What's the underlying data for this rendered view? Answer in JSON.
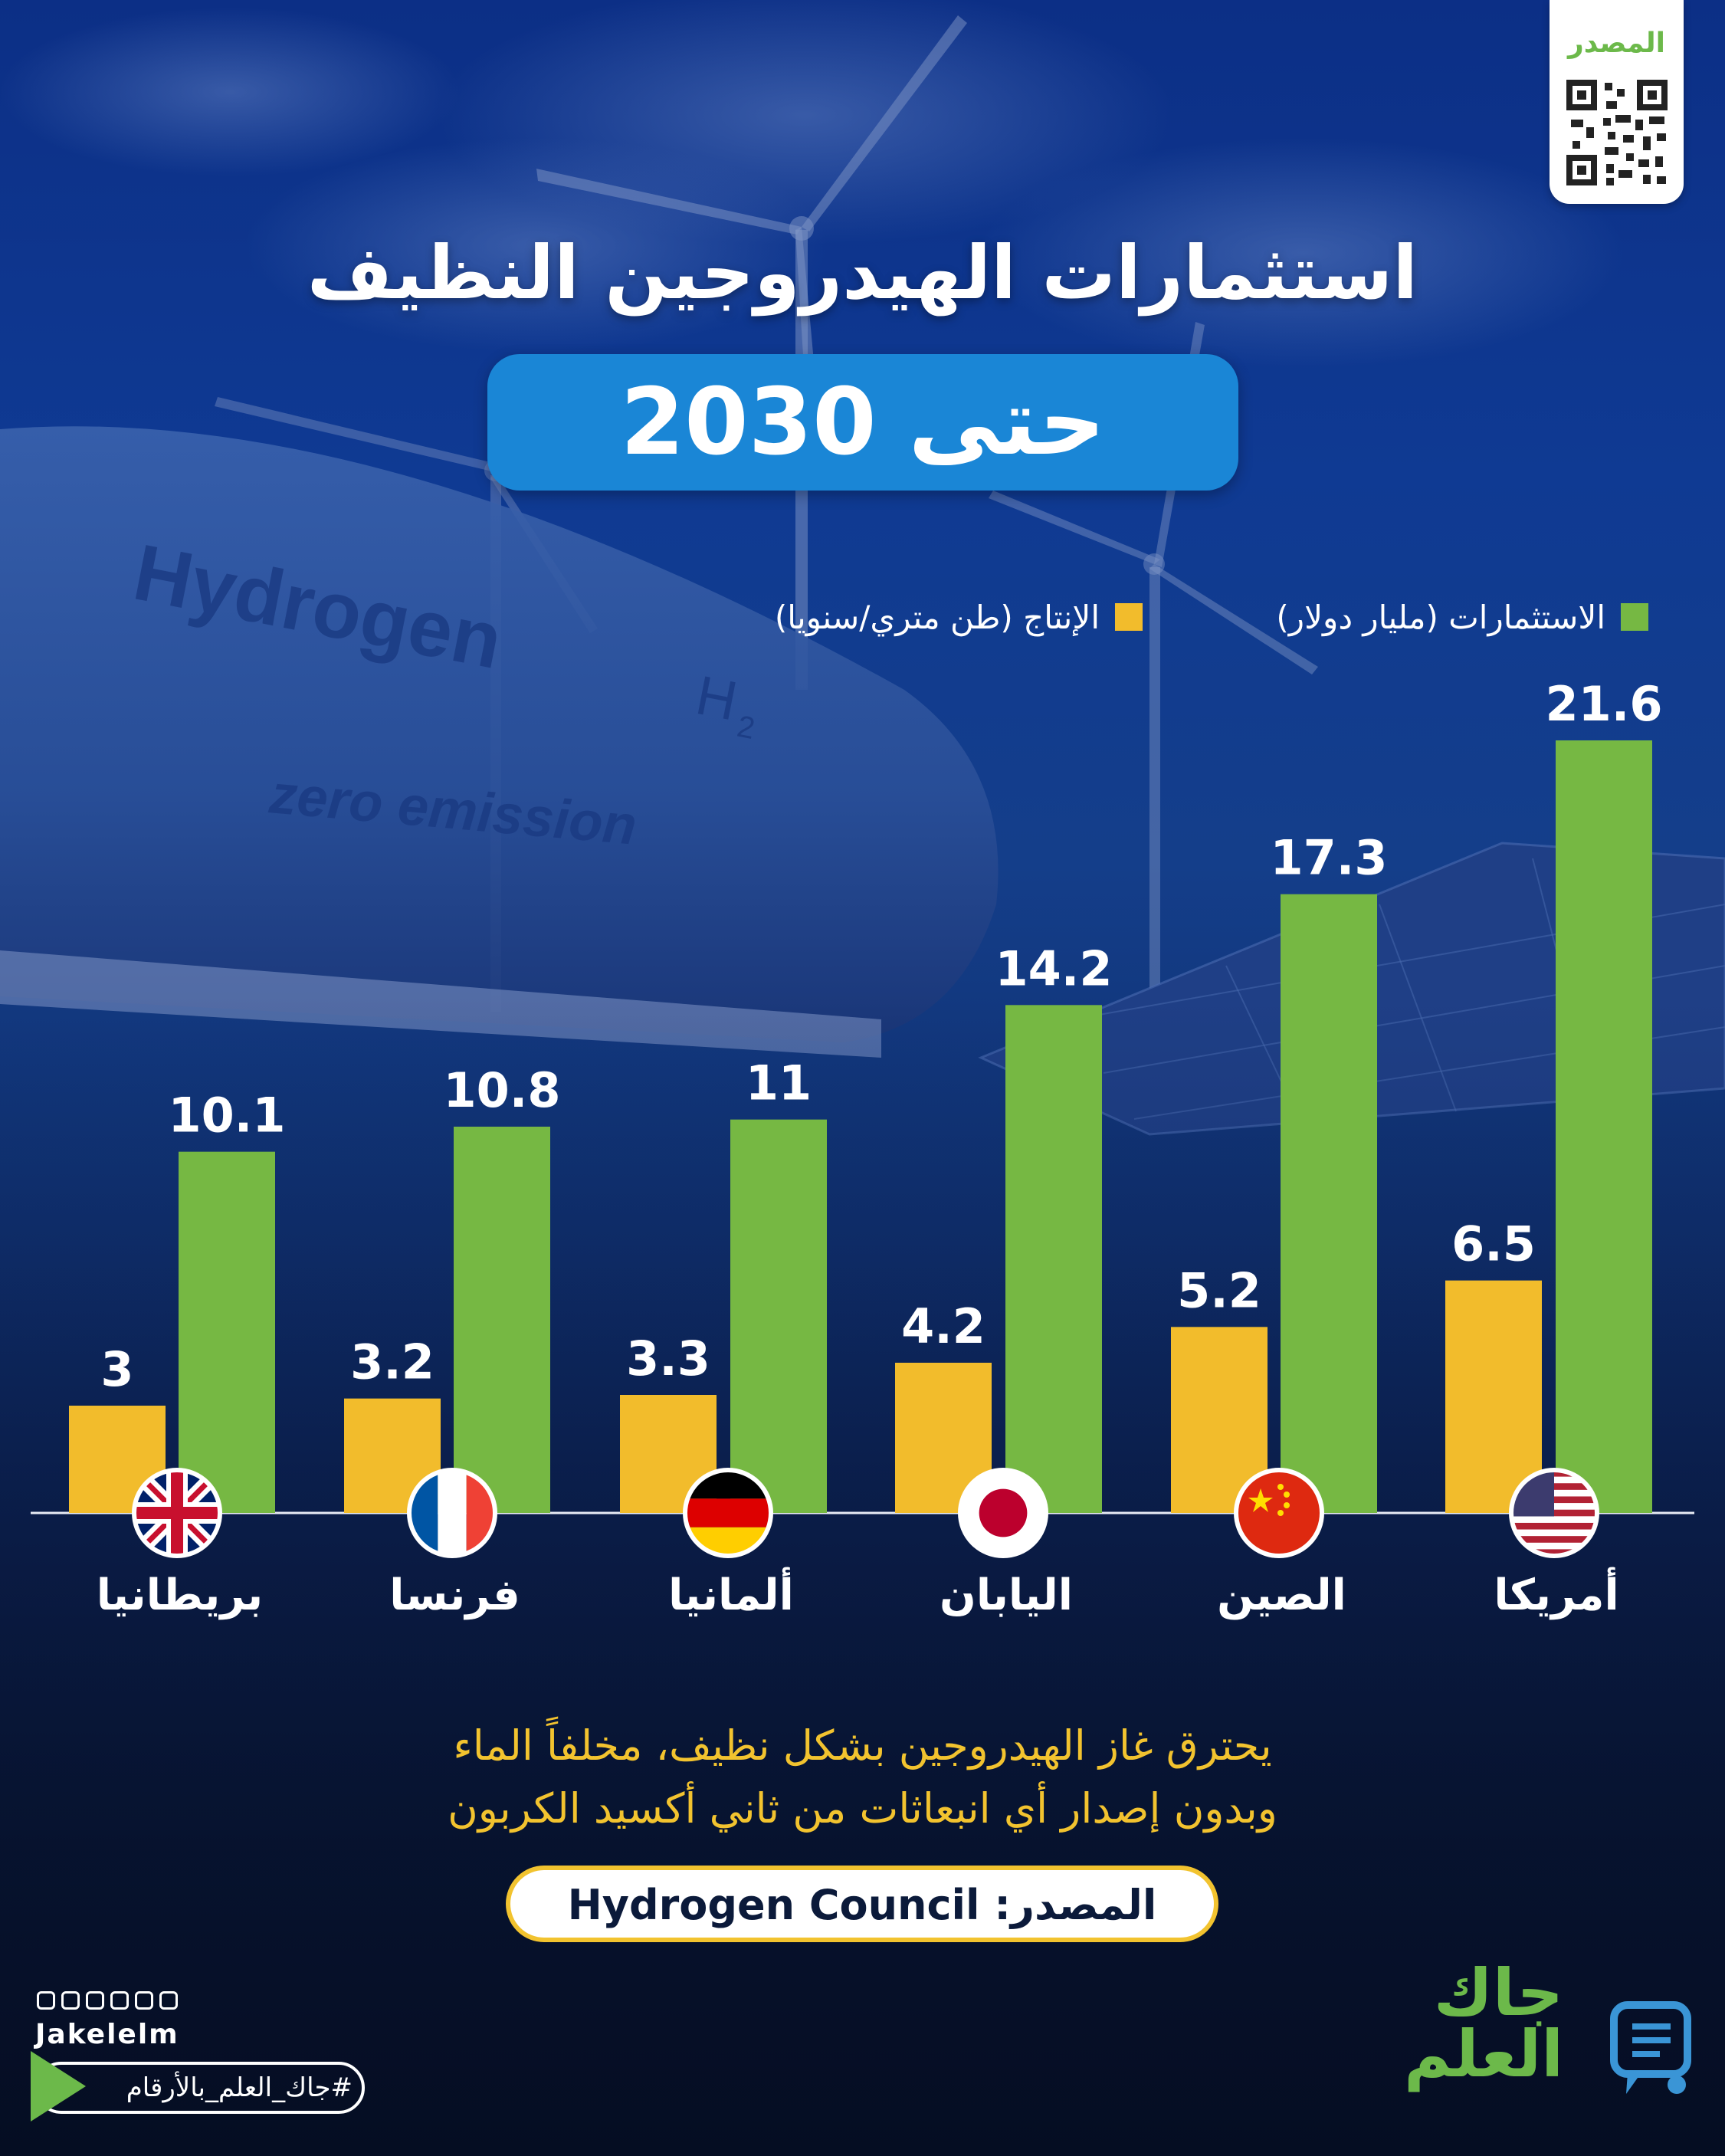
{
  "header": {
    "qr_label": "المصدر",
    "title": "استثمارات الهيدروجين النظيف",
    "subtitle": "حتى 2030"
  },
  "background": {
    "tank_text_1": "Hydrogen",
    "tank_text_2": "H",
    "tank_text_2_sub": "2",
    "tank_text_3": "zero emission"
  },
  "legend": {
    "investments": "الاستثمارات (مليار دولار)",
    "production": "الإنتاج (طن متري/سنويا)"
  },
  "colors": {
    "investments": "#76b843",
    "production": "#f2bc2c",
    "pill": "#1a86d6",
    "brand": "#6cb94a"
  },
  "chart_data": {
    "type": "bar",
    "categories": [
      "أمريكا",
      "الصين",
      "اليابان",
      "ألمانيا",
      "فرنسا",
      "بريطانيا"
    ],
    "series": [
      {
        "name": "الاستثمارات (مليار دولار)",
        "values": [
          21.6,
          17.3,
          14.2,
          11,
          10.8,
          10.1
        ]
      },
      {
        "name": "الإنتاج (طن متري/سنويا)",
        "values": [
          6.5,
          5.2,
          4.2,
          3.3,
          3.2,
          3
        ]
      }
    ],
    "value_labels": {
      "investments": [
        "21.6",
        "17.3",
        "14.2",
        "11",
        "10.8",
        "10.1"
      ],
      "production": [
        "6.5",
        "5.2",
        "4.2",
        "3.3",
        "3.2",
        "3"
      ]
    },
    "flags": [
      "usa-flag-icon",
      "china-flag-icon",
      "japan-flag-icon",
      "germany-flag-icon",
      "france-flag-icon",
      "uk-flag-icon"
    ],
    "ylim": [
      0,
      21.6
    ],
    "order": "right-to-left",
    "grid": false
  },
  "footer": {
    "caption_line1": "يحترق غاز الهيدروجين بشكل نظيف، مخلفاً الماء",
    "caption_line2": "وبدون إصدار أي انبعاثات من ثاني أكسيد الكربون",
    "source": "المصدر: Hydrogen Council",
    "handle": "Jakelelm",
    "hashtag": "#جاك_العلم_بالأرقام",
    "brand_line1": "جاك",
    "brand_line2": "العلم"
  }
}
